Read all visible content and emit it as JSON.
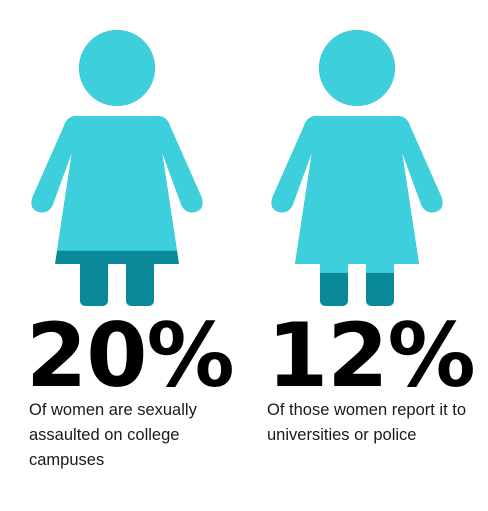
{
  "colors": {
    "figure_fill": "#3ecfdc",
    "figure_shade": "#0a8a98",
    "text": "#000000"
  },
  "chart_data": {
    "type": "pictograph",
    "stats": [
      {
        "value": 20,
        "label": "20%",
        "caption": "Of women are sexually assaulted on college campuses"
      },
      {
        "value": 12,
        "label": "12%",
        "caption": "Of those women report it to universities or police"
      }
    ]
  }
}
